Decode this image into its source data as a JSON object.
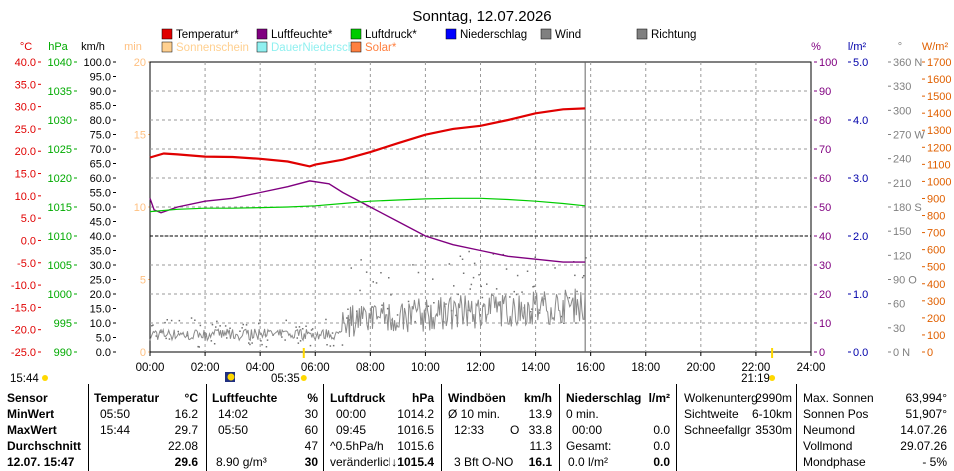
{
  "chart_data": {
    "type": "line",
    "title": "Sonntag, 12.07.2026",
    "x_ticks": [
      "00:00",
      "02:00",
      "04:00",
      "06:00",
      "08:00",
      "10:00",
      "12:00",
      "14:00",
      "16:00",
      "18:00",
      "20:00",
      "22:00",
      "24:00"
    ],
    "legend": [
      {
        "label": "Temperatur*",
        "color": "#e00000"
      },
      {
        "label": "Luftfeuchte*",
        "color": "#800080"
      },
      {
        "label": "Luftdruck*",
        "color": "#00cc00"
      },
      {
        "label": "Niederschlag",
        "color": "#0000ff"
      },
      {
        "label": "Wind",
        "color": "#808080"
      },
      {
        "label": "Richtung",
        "color": "#808080"
      },
      {
        "label": "Sonnenschein",
        "color": "#ffd090"
      },
      {
        "label": "DauerNiedersch",
        "color": "#90f0f0"
      },
      {
        "label": "Solar*",
        "color": "#ff8040"
      }
    ],
    "axes": [
      {
        "unit": "°C",
        "color": "#e00000",
        "ticks": [
          "40.0",
          "35.0",
          "30.0",
          "25.0",
          "20.0",
          "15.0",
          "10.0",
          "5.0",
          "0.0",
          "-5.0",
          "-10.0",
          "-15.0",
          "-20.0",
          "-25.0"
        ]
      },
      {
        "unit": "hPa",
        "color": "#00aa00",
        "ticks": [
          "1040",
          "1035",
          "1030",
          "1025",
          "1020",
          "1015",
          "1010",
          "1005",
          "1000",
          "995",
          "990"
        ]
      },
      {
        "unit": "km/h",
        "color": "#000000",
        "ticks": [
          "100.0",
          "95.0",
          "90.0",
          "85.0",
          "80.0",
          "75.0",
          "70.0",
          "65.0",
          "60.0",
          "55.0",
          "50.0",
          "45.0",
          "40.0",
          "35.0",
          "30.0",
          "25.0",
          "20.0",
          "15.0",
          "10.0",
          "5.0",
          "0.0"
        ]
      },
      {
        "unit": "min",
        "color": "#ffc080",
        "ticks": [
          "20",
          "15",
          "10",
          "5",
          "0"
        ]
      },
      {
        "unit": "%",
        "color": "#800080",
        "ticks": [
          "100",
          "90",
          "80",
          "70",
          "60",
          "50",
          "40",
          "30",
          "20",
          "10",
          "0"
        ]
      },
      {
        "unit": "l/m²",
        "color": "#0000aa",
        "ticks": [
          "5.0",
          "4.0",
          "3.0",
          "2.0",
          "1.0",
          "0.0"
        ]
      },
      {
        "unit": "°",
        "color": "#808080",
        "ticks": [
          "360 N",
          "330",
          "300",
          "270 W",
          "240",
          "210",
          "180 S",
          "150",
          "120",
          "90 O",
          "60",
          "30",
          "0 N"
        ]
      },
      {
        "unit": "W/m²",
        "color": "#e06000",
        "ticks": [
          "1700",
          "1600",
          "1500",
          "1400",
          "1300",
          "1200",
          "1100",
          "1000",
          "900",
          "800",
          "700",
          "600",
          "500",
          "400",
          "300",
          "200",
          "100",
          "0"
        ]
      },
      {
        "unit": "",
        "color": "#808080",
        "ticks": []
      }
    ],
    "series": [
      {
        "name": "Temperatur*",
        "color": "#e00000",
        "x": [
          0,
          0.5,
          1,
          2,
          3,
          4,
          5,
          5.8,
          6,
          7,
          8,
          9,
          10,
          11,
          12,
          13,
          14,
          15,
          15.8
        ],
        "y": [
          18.6,
          19.5,
          19.3,
          18.8,
          18.7,
          18.3,
          17.7,
          16.6,
          17.0,
          18.1,
          19.8,
          21.8,
          23.7,
          25.0,
          25.7,
          27.0,
          28.5,
          29.4,
          29.6
        ]
      },
      {
        "name": "Luftfeuchte*",
        "color": "#800080",
        "x": [
          0,
          0.15,
          0.4,
          1,
          2,
          3,
          4,
          5,
          5.8,
          6.5,
          7,
          8,
          9,
          10,
          11,
          12,
          13,
          14,
          15,
          15.8
        ],
        "y": [
          53,
          49,
          48,
          50,
          52,
          53,
          55,
          57,
          59,
          58,
          55,
          50,
          45,
          40,
          37,
          35,
          33,
          32,
          31,
          31
        ]
      },
      {
        "name": "Luftdruck*",
        "color": "#00cc00",
        "x": [
          0,
          1,
          2,
          3,
          4,
          5,
          6,
          7,
          8,
          9,
          10,
          11,
          12,
          13,
          14,
          15,
          15.8
        ],
        "y": [
          1014.2,
          1014.6,
          1014.8,
          1014.8,
          1014.9,
          1015.0,
          1015.2,
          1015.6,
          1016.0,
          1016.2,
          1016.4,
          1016.5,
          1016.5,
          1016.3,
          1016.0,
          1015.6,
          1015.2
        ]
      }
    ],
    "markers": {
      "sunrise": "05:35",
      "sunset": "21:19",
      "current_time": "15:44"
    }
  },
  "table": {
    "sensor": {
      "head": "Sensor",
      "r1": "MinWert",
      "r2": "MaxWert",
      "r3": "Durchschnitt",
      "r4": "12.07. 15:47"
    },
    "temperature": {
      "head": "Temperatur",
      "unit": "°C",
      "min_time": "05:50",
      "min": "16.2",
      "max_time": "15:44",
      "max": "29.7",
      "avg": "22.08",
      "now": "29.6"
    },
    "humidity": {
      "head": "Luftfeuchte",
      "unit": "%",
      "min_time": "14:02",
      "min": "30",
      "max_time": "05:50",
      "max": "60",
      "avg": "47",
      "abs": "8.90 g/m³",
      "now": "30"
    },
    "pressure": {
      "head": "Luftdruck",
      "unit": "hPa",
      "min_time": "00:00",
      "min": "1014.2",
      "max_time": "09:45",
      "max": "1016.5",
      "trend_label": "^0.5hPa/h",
      "trend": "1015.6",
      "state": "veränderlich",
      "now": "1015.4",
      "arrow": "↓"
    },
    "gusts": {
      "head": "Windböen",
      "unit": "km/h",
      "r1_label": "Ø 10 min.",
      "r1": "13.9",
      "r2_label": "12:33",
      "r2_dir": "O",
      "r2": "33.8",
      "r3": "11.3",
      "r4_label": "3 Bft O-NO",
      "now": "16.1"
    },
    "precip": {
      "head": "Niederschlag",
      "unit": "l/m²",
      "r1_label": "0 min.",
      "r2_label": "00:00",
      "r2": "0.0",
      "r3_label": "Gesamt:",
      "r3": "0.0",
      "r4_label": "0.0 l/m²",
      "now": "0.0"
    },
    "clouds": {
      "l1": "Wolkenunterg",
      "v1": "2990m",
      "l2": "Sichtweite",
      "v2": "6-10km",
      "l3": "Schneefallgr",
      "v3": "3530m"
    },
    "sun": {
      "l1": "Max. Sonnen",
      "v1": "63,994°",
      "l2": "Sonnen Pos",
      "v2": "51,907°",
      "l3": "Neumond",
      "v3": "14.07.26",
      "l4": "Vollmond",
      "v4": "29.07.26",
      "l5": "Mondphase",
      "v5": "- 5%"
    }
  }
}
